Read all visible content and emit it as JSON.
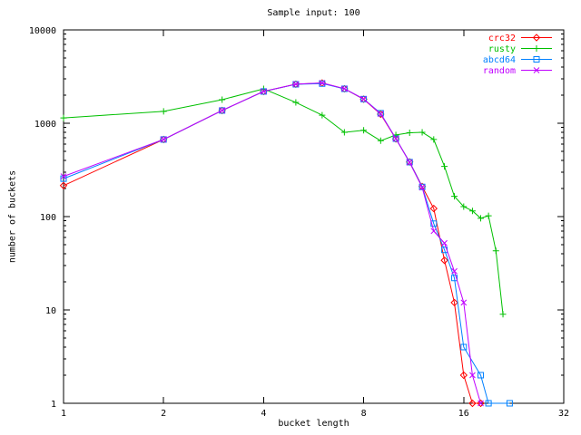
{
  "chart_data": {
    "type": "line",
    "title": "Sample input: 100",
    "xlabel": "bucket length",
    "ylabel": "number of buckets",
    "x_scale": "log2",
    "y_scale": "log10",
    "xlim": [
      1,
      32
    ],
    "ylim": [
      1,
      10000
    ],
    "x_ticks": [
      1,
      2,
      4,
      8,
      16,
      32
    ],
    "y_ticks": [
      1,
      10,
      100,
      1000,
      10000
    ],
    "grid": "off",
    "legend_position": "top-right-inside",
    "background_color": "#ffffff",
    "border_color": "#000000",
    "series": [
      {
        "name": "crc32",
        "color": "#ff0000",
        "marker": "diamond",
        "points": [
          [
            1,
            215
          ],
          [
            2,
            670
          ],
          [
            3,
            1370
          ],
          [
            4,
            2190
          ],
          [
            5,
            2620
          ],
          [
            6,
            2700
          ],
          [
            7,
            2340
          ],
          [
            8,
            1810
          ],
          [
            9,
            1250
          ],
          [
            10,
            680
          ],
          [
            11,
            385
          ],
          [
            12,
            210
          ],
          [
            13,
            122
          ],
          [
            14,
            34
          ],
          [
            15,
            12
          ],
          [
            16,
            2
          ],
          [
            17,
            1
          ],
          [
            18,
            1
          ]
        ]
      },
      {
        "name": "rusty",
        "color": "#00c000",
        "marker": "plus",
        "points": [
          [
            1,
            1140
          ],
          [
            2,
            1340
          ],
          [
            3,
            1790
          ],
          [
            4,
            2340
          ],
          [
            5,
            1670
          ],
          [
            6,
            1220
          ],
          [
            7,
            800
          ],
          [
            8,
            840
          ],
          [
            9,
            650
          ],
          [
            10,
            750
          ],
          [
            11,
            790
          ],
          [
            12,
            800
          ],
          [
            13,
            670
          ],
          [
            14,
            345
          ],
          [
            15,
            165
          ],
          [
            16,
            128
          ],
          [
            17,
            115
          ],
          [
            18,
            96
          ],
          [
            19,
            102
          ],
          [
            20,
            43
          ],
          [
            21,
            9
          ]
        ]
      },
      {
        "name": "abcd64",
        "color": "#0080ff",
        "marker": "square",
        "points": [
          [
            1,
            255
          ],
          [
            2,
            670
          ],
          [
            3,
            1370
          ],
          [
            4,
            2190
          ],
          [
            5,
            2615
          ],
          [
            6,
            2660
          ],
          [
            7,
            2340
          ],
          [
            8,
            1815
          ],
          [
            9,
            1280
          ],
          [
            10,
            684
          ],
          [
            11,
            383
          ],
          [
            12,
            208
          ],
          [
            13,
            84
          ],
          [
            14,
            44
          ],
          [
            15,
            22
          ],
          [
            16,
            4
          ],
          [
            18,
            2
          ],
          [
            19,
            1
          ],
          [
            22,
            1
          ]
        ]
      },
      {
        "name": "random",
        "color": "#c000ff",
        "marker": "x",
        "points": [
          [
            1,
            270
          ],
          [
            2,
            672
          ],
          [
            3,
            1375
          ],
          [
            4,
            2195
          ],
          [
            5,
            2620
          ],
          [
            6,
            2705
          ],
          [
            7,
            2350
          ],
          [
            8,
            1820
          ],
          [
            9,
            1260
          ],
          [
            10,
            686
          ],
          [
            11,
            380
          ],
          [
            12,
            205
          ],
          [
            13,
            70
          ],
          [
            14,
            52
          ],
          [
            15,
            26
          ],
          [
            16,
            12
          ],
          [
            17,
            2
          ],
          [
            18,
            1
          ]
        ]
      }
    ]
  }
}
